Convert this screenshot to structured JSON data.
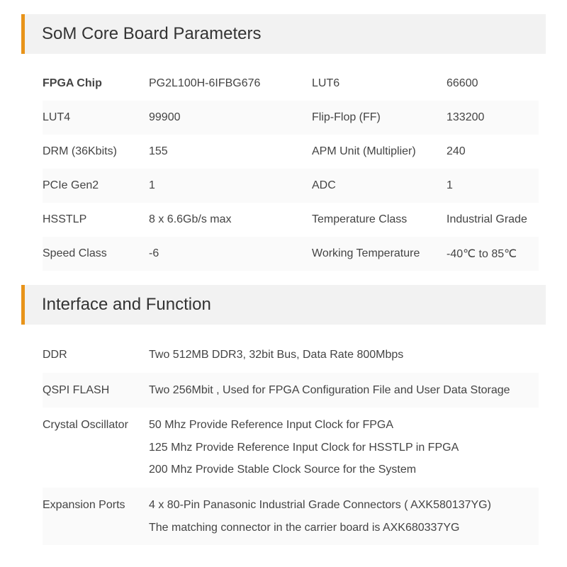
{
  "colors": {
    "accent": "#e8941a",
    "header_bg": "#f2f2f2",
    "row_alt_bg": "#fafafa",
    "text": "#333333",
    "cell_text": "#444444",
    "page_bg": "#ffffff"
  },
  "typography": {
    "title_fontsize": 24,
    "cell_fontsize": 16,
    "font_family": "Segoe UI"
  },
  "section1": {
    "title": "SoM Core Board Parameters",
    "rows": [
      {
        "l1": "FPGA Chip",
        "v1": "PG2L100H-6IFBG676",
        "l2": "LUT6",
        "v2": "66600",
        "l1_bold": true
      },
      {
        "l1": "LUT4",
        "v1": "99900",
        "l2": "Flip-Flop (FF)",
        "v2": "133200"
      },
      {
        "l1": "DRM (36Kbits)",
        "v1": "155",
        "l2": "APM Unit (Multiplier)",
        "v2": "240"
      },
      {
        "l1": "PCIe Gen2",
        "v1": "1",
        "l2": "ADC",
        "v2": "1"
      },
      {
        "l1": "HSSTLP",
        "v1": "8 x 6.6Gb/s max",
        "l2": "Temperature Class",
        "v2": "Industrial Grade"
      },
      {
        "l1": "Speed Class",
        "v1": "-6",
        "l2": "Working Temperature",
        "v2": "-40℃ to 85℃"
      }
    ]
  },
  "section2": {
    "title": "Interface and Function",
    "rows": [
      {
        "label": "DDR",
        "lines": [
          "Two 512MB DDR3, 32bit Bus, Data Rate 800Mbps"
        ]
      },
      {
        "label": "QSPI FLASH",
        "lines": [
          "Two 256Mbit , Used for FPGA Configuration File and User Data Storage"
        ]
      },
      {
        "label": "Crystal Oscillator",
        "lines": [
          "50 Mhz Provide Reference Input Clock for FPGA",
          "125 Mhz Provide Reference Input Clock for HSSTLP in FPGA",
          "200 Mhz Provide Stable Clock Source for the System"
        ]
      },
      {
        "label": "Expansion Ports",
        "lines": [
          "4 x 80-Pin Panasonic Industrial Grade Connectors ( AXK580137YG)",
          "The matching connector in the carrier board is  AXK680337YG"
        ]
      }
    ]
  }
}
